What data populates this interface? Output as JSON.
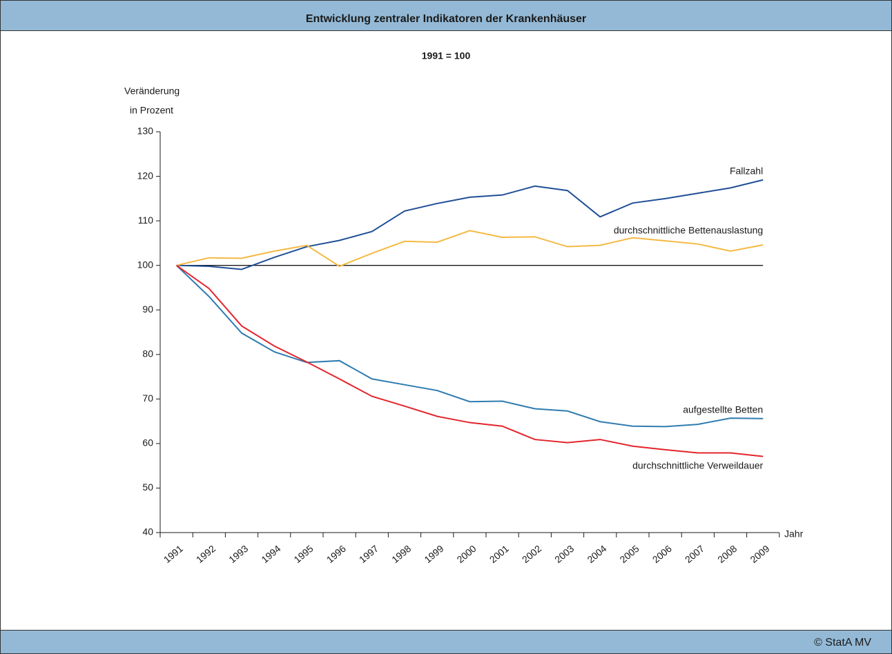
{
  "chart_data": {
    "type": "line",
    "title": "Entwicklung zentraler Indikatoren der Krankenhäuser",
    "subtitle": "1991 = 100",
    "y_label": [
      "Veränderung",
      "in Prozent"
    ],
    "x_label": "Jahr",
    "source": "© StatA MV",
    "categories": [
      "1991",
      "1992",
      "1993",
      "1994",
      "1995",
      "1996",
      "1997",
      "1998",
      "1999",
      "2000",
      "2001",
      "2002",
      "2003",
      "2004",
      "2005",
      "2006",
      "2007",
      "2008",
      "2009"
    ],
    "series": [
      {
        "name": "Fallzahl",
        "color": "#1f4e96",
        "values": [
          100,
          99.8,
          99.1,
          101.8,
          104.2,
          105.6,
          107.6,
          112.2,
          113.9,
          115.3,
          115.8,
          117.8,
          116.8,
          110.9,
          114.0,
          115.0,
          116.2,
          117.4,
          119.2
        ]
      },
      {
        "name": "durchschnittliche Bettenauslastung",
        "color": "#f5b942",
        "values": [
          100,
          101.7,
          101.6,
          103.2,
          104.5,
          99.8,
          102.7,
          105.4,
          105.2,
          107.8,
          106.3,
          106.4,
          104.2,
          104.5,
          106.2,
          105.5,
          104.8,
          103.2,
          104.6
        ]
      },
      {
        "name": "aufgestellte Betten",
        "color": "#2e7bb0",
        "values": [
          100,
          93.0,
          84.8,
          80.6,
          78.2,
          78.6,
          74.5,
          73.2,
          71.9,
          69.4,
          69.5,
          67.8,
          67.3,
          64.9,
          63.9,
          63.8,
          64.3,
          65.7,
          65.6
        ]
      },
      {
        "name": "durchschnittliche Verweildauer",
        "color": "#e3242b",
        "values": [
          100,
          94.8,
          86.4,
          81.9,
          78.3,
          74.5,
          70.6,
          68.4,
          66.1,
          64.7,
          63.9,
          60.9,
          60.2,
          60.9,
          59.4,
          58.6,
          57.9,
          57.9,
          57.1
        ]
      }
    ],
    "reference_line": 100,
    "ylim": [
      40,
      130
    ],
    "yticks": [
      40,
      50,
      60,
      70,
      80,
      90,
      100,
      110,
      120,
      130
    ]
  }
}
